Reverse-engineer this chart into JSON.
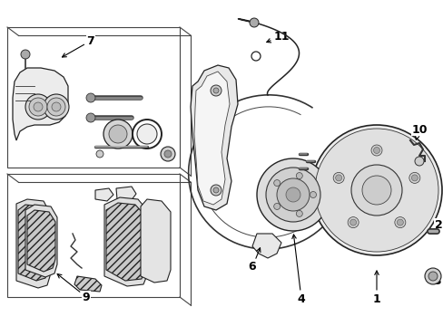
{
  "background_color": "#ffffff",
  "figsize": [
    4.89,
    3.6
  ],
  "dpi": 100,
  "line_color": "#1a1a1a",
  "text_color": "#000000",
  "font_size": 8.5,
  "gray_fill": "#e8e8e8",
  "dark_gray": "#555555",
  "mid_gray": "#888888",
  "light_gray": "#d0d0d0"
}
